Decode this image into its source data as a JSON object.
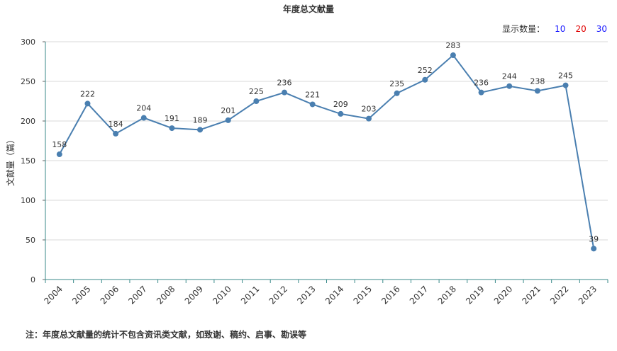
{
  "title": "年度总文献量",
  "count_selector": {
    "label": "显示数量：",
    "options": [
      {
        "label": "10",
        "color": "#1a1aff"
      },
      {
        "label": "20",
        "color": "#e00000"
      },
      {
        "label": "30",
        "color": "#1a1aff"
      }
    ]
  },
  "note": "注：年度总文献量的统计不包含资讯类文献，如致谢、稿约、启事、勘误等",
  "chart_data": {
    "type": "line",
    "title": "年度总文献量",
    "xlabel": "",
    "ylabel": "文献量（篇）",
    "ylim": [
      0,
      300
    ],
    "yticks": [
      0,
      50,
      100,
      150,
      200,
      250,
      300
    ],
    "grid": true,
    "line_color": "#4a7fb0",
    "x": [
      "2004",
      "2005",
      "2006",
      "2007",
      "2008",
      "2009",
      "2010",
      "2011",
      "2012",
      "2013",
      "2014",
      "2015",
      "2016",
      "2017",
      "2018",
      "2019",
      "2020",
      "2021",
      "2022",
      "2023"
    ],
    "values": [
      158,
      222,
      184,
      204,
      191,
      189,
      201,
      225,
      236,
      221,
      209,
      203,
      235,
      252,
      283,
      236,
      244,
      238,
      245,
      39
    ]
  }
}
